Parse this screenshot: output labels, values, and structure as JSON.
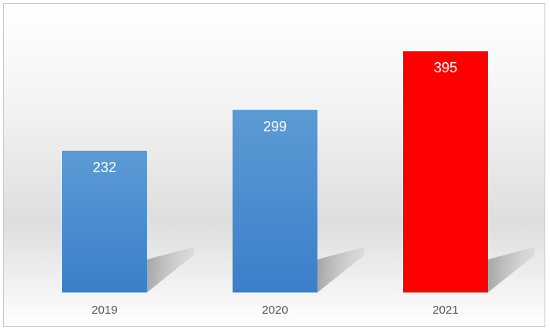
{
  "chart_data": {
    "type": "bar",
    "categories": [
      "2019",
      "2020",
      "2021"
    ],
    "values": [
      232,
      299,
      395
    ],
    "bar_colors": [
      "#4a8fd3",
      "#4a8fd3",
      "#ff0000"
    ],
    "data_labels": [
      "232",
      "299",
      "395"
    ],
    "title": "",
    "xlabel": "",
    "ylabel": "",
    "ylim": [
      0,
      430
    ],
    "grid": false,
    "legend": "none"
  }
}
